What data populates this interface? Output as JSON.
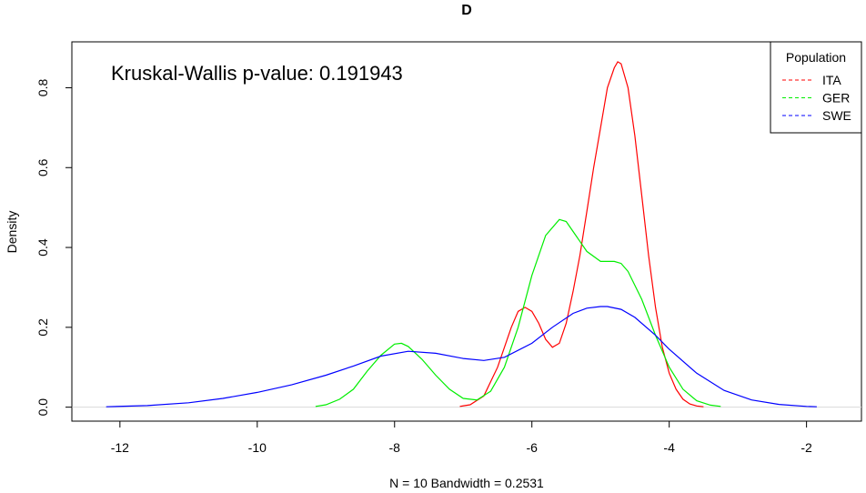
{
  "chart_data": {
    "type": "line",
    "title": "D",
    "xlabel": "N = 10   Bandwidth = 0.2531",
    "ylabel": "Density",
    "annotation": "Kruskal-Wallis p-value: 0.191943",
    "xlim": [
      -12.7,
      -1.2
    ],
    "ylim": [
      -0.035,
      0.915
    ],
    "x_ticks": [
      -12,
      -10,
      -8,
      -6,
      -4,
      -2
    ],
    "x_tick_labels": [
      "-12",
      "-10",
      "-8",
      "-6",
      "-4",
      "-2"
    ],
    "y_ticks": [
      0.0,
      0.2,
      0.4,
      0.6,
      0.8
    ],
    "y_tick_labels": [
      "0.0",
      "0.2",
      "0.4",
      "0.6",
      "0.8"
    ],
    "baseline": 0,
    "baseline_color": "#d9d9d9",
    "legend": {
      "title": "Population",
      "position": "top-right",
      "line_style": "dashed",
      "entries": [
        {
          "label": "ITA",
          "color": "#ff0000"
        },
        {
          "label": "GER",
          "color": "#00ee00"
        },
        {
          "label": "SWE",
          "color": "#0000ff"
        }
      ]
    },
    "series": [
      {
        "color": "#ff0000",
        "x": [
          -7.05,
          -6.9,
          -6.7,
          -6.5,
          -6.3,
          -6.2,
          -6.1,
          -6.0,
          -5.9,
          -5.8,
          -5.7,
          -5.6,
          -5.5,
          -5.4,
          -5.3,
          -5.2,
          -5.1,
          -5.0,
          -4.9,
          -4.8,
          -4.75,
          -4.7,
          -4.6,
          -4.5,
          -4.4,
          -4.3,
          -4.2,
          -4.1,
          -4.0,
          -3.9,
          -3.8,
          -3.7,
          -3.6,
          -3.5
        ],
        "y": [
          0.002,
          0.006,
          0.028,
          0.1,
          0.2,
          0.24,
          0.25,
          0.24,
          0.21,
          0.17,
          0.15,
          0.16,
          0.21,
          0.29,
          0.38,
          0.49,
          0.6,
          0.7,
          0.8,
          0.85,
          0.865,
          0.86,
          0.8,
          0.68,
          0.53,
          0.38,
          0.25,
          0.15,
          0.085,
          0.045,
          0.02,
          0.008,
          0.003,
          0.001
        ]
      },
      {
        "color": "#00ee00",
        "x": [
          -9.15,
          -9.0,
          -8.8,
          -8.6,
          -8.4,
          -8.2,
          -8.0,
          -7.9,
          -7.8,
          -7.6,
          -7.4,
          -7.2,
          -7.0,
          -6.8,
          -6.6,
          -6.4,
          -6.2,
          -6.0,
          -5.8,
          -5.6,
          -5.5,
          -5.4,
          -5.2,
          -5.0,
          -4.8,
          -4.7,
          -4.6,
          -4.4,
          -4.2,
          -4.0,
          -3.8,
          -3.6,
          -3.4,
          -3.25
        ],
        "y": [
          0.002,
          0.006,
          0.02,
          0.045,
          0.09,
          0.13,
          0.158,
          0.16,
          0.152,
          0.12,
          0.08,
          0.045,
          0.022,
          0.018,
          0.04,
          0.1,
          0.2,
          0.33,
          0.43,
          0.47,
          0.465,
          0.44,
          0.39,
          0.365,
          0.365,
          0.36,
          0.34,
          0.27,
          0.18,
          0.1,
          0.045,
          0.016,
          0.005,
          0.002
        ]
      },
      {
        "color": "#0000ff",
        "x": [
          -12.2,
          -11.6,
          -11.0,
          -10.5,
          -10.0,
          -9.5,
          -9.0,
          -8.6,
          -8.2,
          -7.8,
          -7.4,
          -7.0,
          -6.7,
          -6.4,
          -6.0,
          -5.7,
          -5.4,
          -5.2,
          -5.0,
          -4.9,
          -4.7,
          -4.5,
          -4.2,
          -4.0,
          -3.6,
          -3.2,
          -2.8,
          -2.4,
          -2.0,
          -1.85
        ],
        "y": [
          0.001,
          0.004,
          0.011,
          0.022,
          0.037,
          0.056,
          0.08,
          0.103,
          0.128,
          0.14,
          0.135,
          0.122,
          0.117,
          0.125,
          0.16,
          0.2,
          0.235,
          0.248,
          0.252,
          0.252,
          0.245,
          0.225,
          0.18,
          0.145,
          0.085,
          0.042,
          0.018,
          0.007,
          0.002,
          0.001
        ]
      }
    ]
  }
}
